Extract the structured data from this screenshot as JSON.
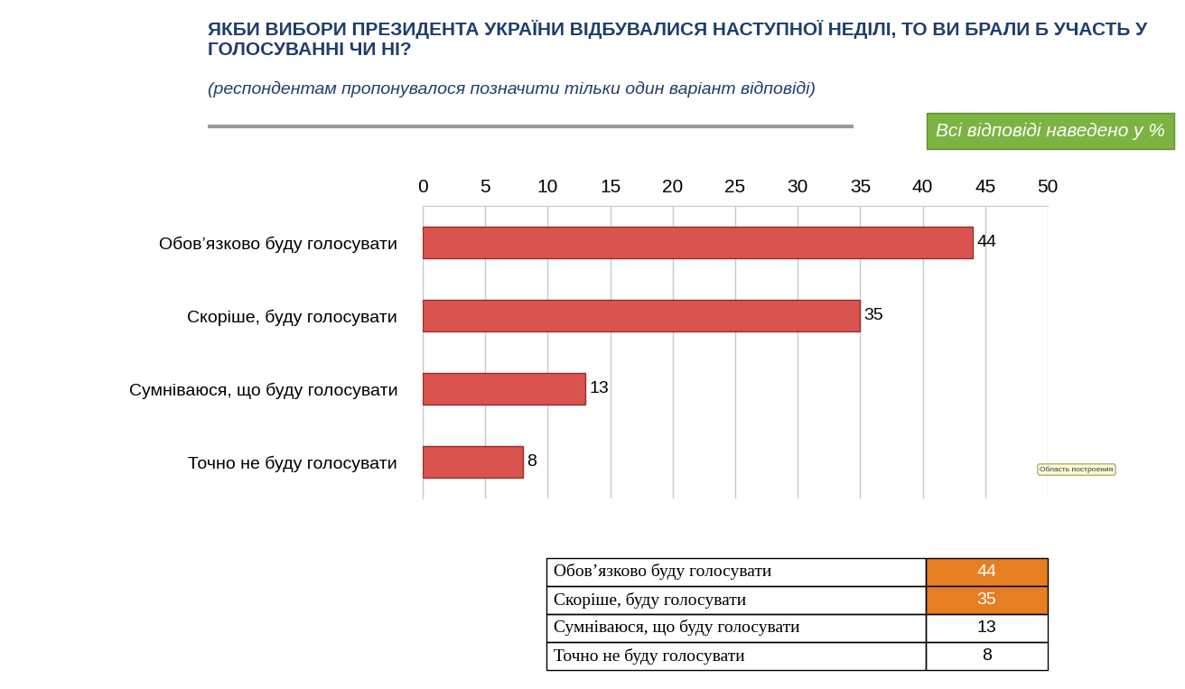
{
  "chart_data": {
    "type": "bar",
    "orientation": "horizontal",
    "title": "ЯКБИ ВИБОРИ ПРЕЗИДЕНТА УКРАЇНИ ВІДБУВАЛИСЯ НАСТУПНОЇ НЕДІЛІ, ТО ВИ БРАЛИ Б УЧАСТЬ У ГОЛОСУВАННІ ЧИ НІ?",
    "subtitle": "(респондентам пропонувалося позначити тільки один варіант відповіді)",
    "annotations": [
      "Всі відповіді наведено у %",
      "Область построения"
    ],
    "categories": [
      "Обов’язково буду голосувати",
      "Скоріше, буду голосувати",
      "Сумніваюся, що буду голосувати",
      "Точно не буду голосувати"
    ],
    "values": [
      44,
      35,
      13,
      8
    ],
    "color": "#d9534f",
    "xlim": [
      0,
      50
    ],
    "xticks": [
      0,
      5,
      10,
      15,
      20,
      25,
      30,
      35,
      40,
      45,
      50
    ],
    "grid": true,
    "data_labels": true
  },
  "table": {
    "rows": [
      [
        "Обов’язково буду голосувати",
        44
      ],
      [
        "Скоріше, буду голосувати",
        35
      ],
      [
        "Сумніваюся, що буду голосувати",
        13
      ],
      [
        "Точно не буду голосувати",
        8
      ]
    ]
  }
}
